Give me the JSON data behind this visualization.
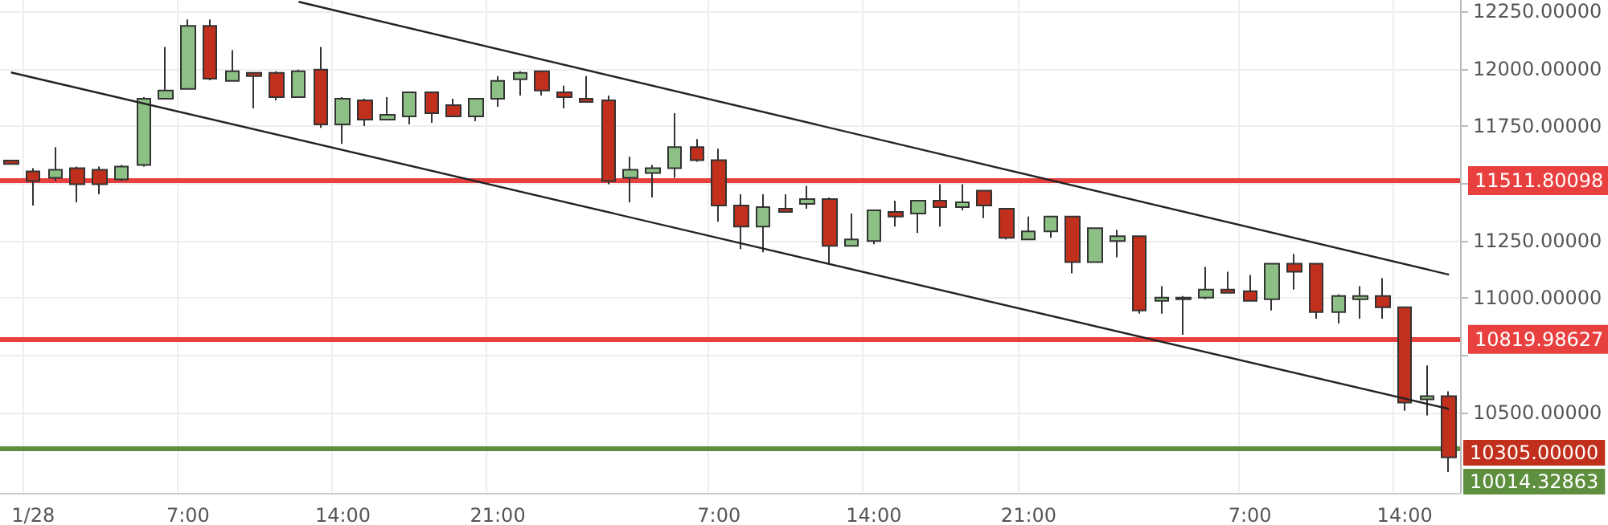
{
  "chart_data": {
    "type": "candlestick",
    "categories": [
      null,
      "1/28",
      null,
      null,
      null,
      null,
      null,
      null,
      "7:00",
      null,
      null,
      null,
      null,
      null,
      null,
      "14:00",
      null,
      null,
      null,
      null,
      null,
      null,
      "21:00",
      null,
      null,
      null,
      null,
      null,
      null,
      null,
      null,
      null,
      "7:00",
      null,
      null,
      null,
      null,
      null,
      null,
      "14:00",
      null,
      null,
      null,
      null,
      null,
      null,
      "21:00",
      null,
      null,
      null,
      null,
      null,
      null,
      null,
      null,
      null,
      "7:00",
      null,
      null,
      null,
      null,
      null,
      null,
      "14:00",
      null,
      null
    ],
    "ohlc": [
      [
        11600,
        11600,
        11585,
        11585
      ],
      [
        11552,
        11566,
        11404,
        11510
      ],
      [
        11524,
        11658,
        11510,
        11559
      ],
      [
        11566,
        11573,
        11418,
        11496
      ],
      [
        11559,
        11573,
        11453,
        11496
      ],
      [
        11517,
        11580,
        11510,
        11573
      ],
      [
        11580,
        11876,
        11573,
        11869
      ],
      [
        11869,
        12095,
        11869,
        11905
      ],
      [
        11912,
        12215,
        11912,
        12187
      ],
      [
        12187,
        12215,
        11950,
        11957
      ],
      [
        11947,
        12081,
        11947,
        11989
      ],
      [
        11982,
        11982,
        11827,
        11968
      ],
      [
        11982,
        11989,
        11862,
        11876
      ],
      [
        11876,
        11996,
        11876,
        11989
      ],
      [
        11996,
        12095,
        11742,
        11757
      ],
      [
        11757,
        11876,
        11672,
        11869
      ],
      [
        11862,
        11869,
        11750,
        11778
      ],
      [
        11778,
        11876,
        11778,
        11799
      ],
      [
        11792,
        11897,
        11757,
        11897
      ],
      [
        11897,
        11897,
        11764,
        11806
      ],
      [
        11841,
        11869,
        11792,
        11792
      ],
      [
        11792,
        11869,
        11771,
        11869
      ],
      [
        11869,
        11968,
        11834,
        11947
      ],
      [
        11954,
        11989,
        11883,
        11982
      ],
      [
        11989,
        11989,
        11883,
        11905
      ],
      [
        11897,
        11926,
        11827,
        11876
      ],
      [
        11869,
        11968,
        11855,
        11855
      ],
      [
        11862,
        11883,
        11496,
        11510
      ],
      [
        11524,
        11616,
        11418,
        11559
      ],
      [
        11545,
        11580,
        11439,
        11566
      ],
      [
        11566,
        11806,
        11524,
        11658
      ],
      [
        11658,
        11693,
        11594,
        11601
      ],
      [
        11601,
        11651,
        11333,
        11404
      ],
      [
        11404,
        11453,
        11214,
        11312
      ],
      [
        11312,
        11453,
        11200,
        11397
      ],
      [
        11390,
        11453,
        11376,
        11376
      ],
      [
        11411,
        11489,
        11390,
        11432
      ],
      [
        11432,
        11439,
        11150,
        11228
      ],
      [
        11228,
        11369,
        11228,
        11256
      ],
      [
        11249,
        11383,
        11235,
        11383
      ],
      [
        11376,
        11425,
        11312,
        11355
      ],
      [
        11369,
        11425,
        11284,
        11425
      ],
      [
        11425,
        11496,
        11312,
        11397
      ],
      [
        11397,
        11496,
        11383,
        11418
      ],
      [
        11468,
        11468,
        11348,
        11404
      ],
      [
        11390,
        11390,
        11256,
        11263
      ],
      [
        11256,
        11355,
        11256,
        11291
      ],
      [
        11291,
        11355,
        11263,
        11355
      ],
      [
        11355,
        11355,
        11108,
        11157
      ],
      [
        11157,
        11305,
        11157,
        11305
      ],
      [
        11249,
        11298,
        11178,
        11270
      ],
      [
        11270,
        11270,
        10932,
        10946
      ],
      [
        10988,
        11052,
        10932,
        11002
      ],
      [
        10995,
        11009,
        10840,
        11002
      ],
      [
        11002,
        11136,
        10995,
        11037
      ],
      [
        11037,
        11115,
        11023,
        11023
      ],
      [
        11030,
        11101,
        10988,
        10988
      ],
      [
        10995,
        11150,
        10946,
        11150
      ],
      [
        11150,
        11192,
        11037,
        11115
      ],
      [
        11150,
        11150,
        10910,
        10939
      ],
      [
        10939,
        11016,
        10889,
        11009
      ],
      [
        10995,
        11052,
        10910,
        11009
      ],
      [
        11009,
        11087,
        10910,
        10960
      ],
      [
        10960,
        10960,
        10508,
        10544
      ],
      [
        10558,
        10706,
        10488,
        10572
      ],
      [
        10572,
        10593,
        10241,
        10305
      ]
    ],
    "colors": [
      "#c0301c",
      "#c0301c",
      "#8cc084",
      "#c0301c",
      "#c0301c",
      "#8cc084",
      "#8cc084",
      "#8cc084",
      "#8cc084",
      "#c0301c",
      "#8cc084",
      "#c0301c",
      "#c0301c",
      "#8cc084",
      "#c0301c",
      "#8cc084",
      "#c0301c",
      "#8cc084",
      "#8cc084",
      "#c0301c",
      "#c0301c",
      "#8cc084",
      "#8cc084",
      "#8cc084",
      "#c0301c",
      "#c0301c",
      "#c0301c",
      "#c0301c",
      "#8cc084",
      "#8cc084",
      "#8cc084",
      "#c0301c",
      "#c0301c",
      "#c0301c",
      "#8cc084",
      "#c0301c",
      "#8cc084",
      "#c0301c",
      "#8cc084",
      "#8cc084",
      "#c0301c",
      "#8cc084",
      "#c0301c",
      "#8cc084",
      "#c0301c",
      "#c0301c",
      "#8cc084",
      "#8cc084",
      "#c0301c",
      "#8cc084",
      "#8cc084",
      "#c0301c",
      "#8cc084",
      "#8cc084",
      "#8cc084",
      "#c0301c",
      "#c0301c",
      "#8cc084",
      "#c0301c",
      "#c0301c",
      "#8cc084",
      "#8cc084",
      "#c0301c",
      "#c0301c",
      "#8cc084",
      "#c0301c"
    ],
    "series": [
      {
        "type": "line",
        "color": "#222222",
        "values": [
          null,
          null,
          null,
          null,
          null,
          null,
          null,
          null,
          null,
          null,
          null,
          null,
          null,
          12292,
          null,
          null,
          null,
          null,
          null,
          null,
          null,
          null,
          null,
          null,
          null,
          null,
          null,
          null,
          null,
          null,
          null,
          null,
          null,
          null,
          null,
          null,
          null,
          null,
          null,
          null,
          null,
          null,
          null,
          null,
          null,
          null,
          null,
          null,
          null,
          null,
          null,
          null,
          null,
          null,
          null,
          null,
          null,
          null,
          null,
          null,
          null,
          null,
          null,
          null,
          null,
          11102
        ]
      },
      {
        "type": "line",
        "color": "#222222",
        "values": [
          11984,
          null,
          null,
          null,
          null,
          null,
          null,
          null,
          null,
          null,
          null,
          null,
          null,
          null,
          null,
          null,
          null,
          null,
          null,
          null,
          null,
          null,
          null,
          null,
          null,
          null,
          null,
          null,
          null,
          null,
          null,
          null,
          null,
          null,
          null,
          null,
          null,
          null,
          null,
          null,
          null,
          null,
          null,
          null,
          null,
          null,
          null,
          null,
          null,
          null,
          null,
          null,
          null,
          null,
          null,
          null,
          null,
          null,
          null,
          null,
          null,
          null,
          null,
          null,
          null,
          10516
        ]
      }
    ],
    "ylim": [
      10150,
      12300
    ],
    "yticks": [
      {
        "value": 10500,
        "label": "10500.00000"
      },
      {
        "value": 10750,
        "label": null
      },
      {
        "value": 11000,
        "label": "11000.00000"
      },
      {
        "value": 11250,
        "label": "11250.00000"
      },
      {
        "value": 11500,
        "label": null
      },
      {
        "value": 11750,
        "label": "11750.00000"
      },
      {
        "value": 12000,
        "label": "12000.00000"
      },
      {
        "value": 12250,
        "label": "12250.00000"
      }
    ],
    "ref_lines": [
      {
        "axis": "y",
        "value": 11511.80098,
        "label": "11511.80098",
        "color": "#e8403f"
      },
      {
        "axis": "y",
        "value": 10819.98627,
        "label": "10819.98627",
        "color": "#e8403f"
      },
      {
        "axis": "y",
        "value": 10347,
        "label": null,
        "color": "#5e8f3f"
      }
    ],
    "annotations": [
      "10305.00000",
      "10014.32863"
    ],
    "grid": true
  }
}
